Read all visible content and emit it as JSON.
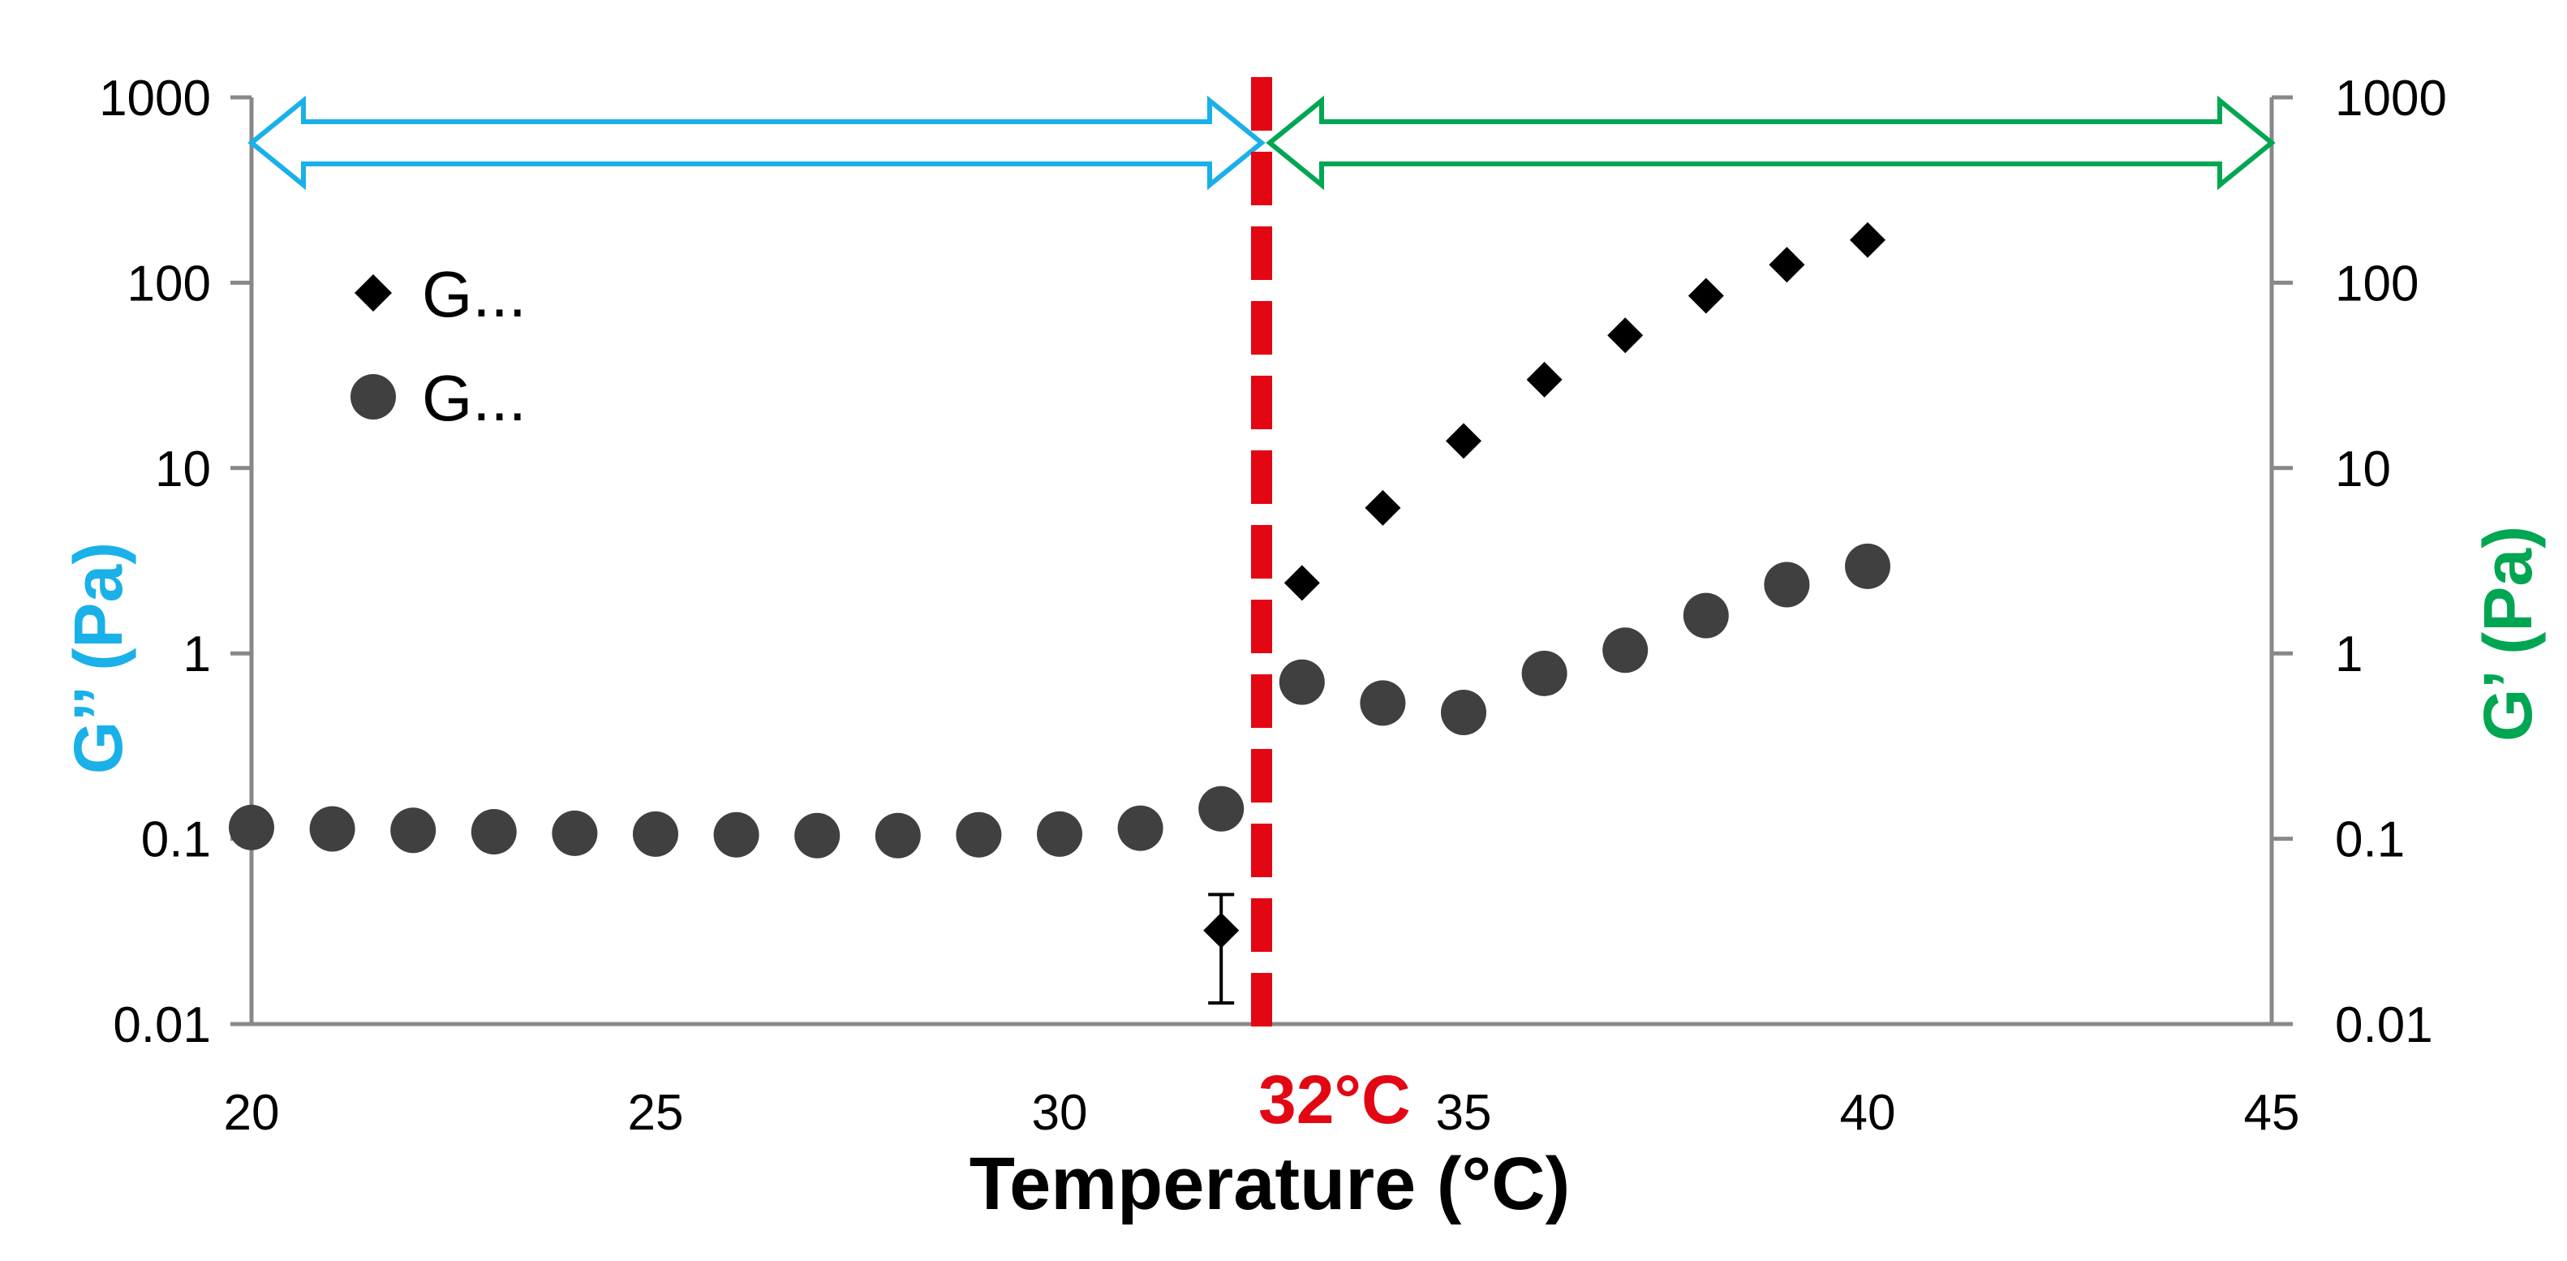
{
  "chart_data": {
    "type": "scatter",
    "x_scale": "linear",
    "y_scale": "log",
    "xlabel": "Temperature (°C)",
    "ylabel_left": "G’’ (Pa)",
    "ylabel_right": "G’ (Pa)",
    "xlim": [
      20,
      45
    ],
    "ylim": [
      0.01,
      1000
    ],
    "x_ticks": [
      20,
      25,
      30,
      35,
      40,
      45
    ],
    "x_tick_labels": [
      "20",
      "25",
      "30",
      "35",
      "40",
      "45"
    ],
    "y_ticks": [
      0.01,
      0.1,
      1,
      10,
      100,
      1000
    ],
    "y_tick_labels": [
      "0.01",
      "0.1",
      "1",
      "10",
      "100",
      "1000"
    ],
    "legend_position": "top-left",
    "series": [
      {
        "name": "G...",
        "marker": "diamond",
        "x": [
          32,
          33,
          34,
          35,
          36,
          37,
          38,
          39,
          40
        ],
        "y": [
          0.032,
          2.4,
          6.1,
          14,
          30,
          52,
          85,
          125,
          170
        ],
        "error_bar": {
          "x": 32,
          "low": 0.013,
          "high": 0.05
        }
      },
      {
        "name": "G...",
        "marker": "circle",
        "x": [
          20,
          21,
          22,
          23,
          24,
          25,
          26,
          27,
          28,
          29,
          30,
          31,
          32,
          33,
          34,
          35,
          36,
          37,
          38,
          39,
          40
        ],
        "y": [
          0.115,
          0.113,
          0.111,
          0.109,
          0.107,
          0.106,
          0.105,
          0.104,
          0.104,
          0.105,
          0.106,
          0.114,
          0.145,
          0.7,
          0.54,
          0.48,
          0.78,
          1.04,
          1.6,
          2.35,
          2.95
        ]
      }
    ],
    "annotations": {
      "transition_line": {
        "x": 32.5,
        "label": "32°C",
        "color": "#e30613"
      },
      "left_arrow": {
        "from_x": 20,
        "to_x": 32.5,
        "color": "#1ab0e8"
      },
      "right_arrow": {
        "from_x": 32.5,
        "to_x": 45,
        "color": "#00a651"
      }
    },
    "colors": {
      "axis": "#888888",
      "diamond": "#000000",
      "circle": "#404040",
      "left_label": "#1ab0e8",
      "right_label": "#00a651"
    }
  }
}
